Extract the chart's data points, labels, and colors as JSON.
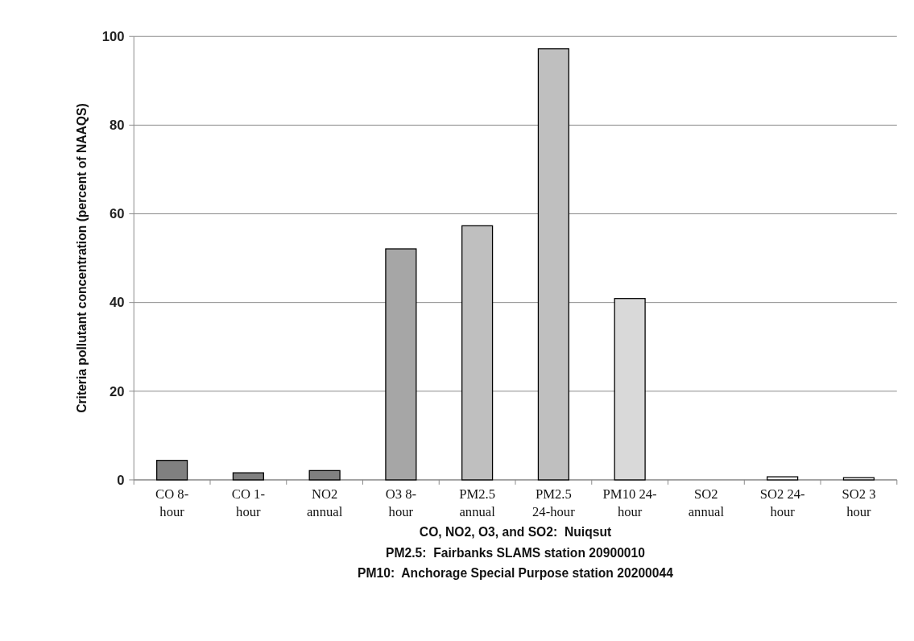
{
  "chart_data": {
    "type": "bar",
    "ylabel": "Criteria pollutant concentration (percent of NAAQS)",
    "categories": [
      "CO 8-hour",
      "CO 1-hour",
      "NO2 annual",
      "O3 8-hour",
      "PM2.5 annual",
      "PM2.5 24-hour",
      "PM10 24-hour",
      "SO2 annual",
      "SO2 24-hour",
      "SO2 3 hour"
    ],
    "values": [
      4.4,
      1.6,
      2.1,
      52.1,
      57.3,
      97.2,
      40.9,
      0,
      0.7,
      0.5
    ],
    "colors": [
      "#808080",
      "#808080",
      "#808080",
      "#a6a6a6",
      "#bfbfbf",
      "#bfbfbf",
      "#d9d9d9",
      "#ffffff",
      "#ffffff",
      "#ffffff"
    ],
    "ylim": [
      0,
      100
    ],
    "yticks": [
      0,
      20,
      40,
      60,
      80,
      100
    ],
    "grid": "y",
    "annotations": [
      "CO, NO2, O3, and SO2:  Nuiqsut",
      "PM2.5:  Fairbanks SLAMS station 20900010",
      "PM10:  Anchorage Special Purpose station 20200044"
    ]
  }
}
